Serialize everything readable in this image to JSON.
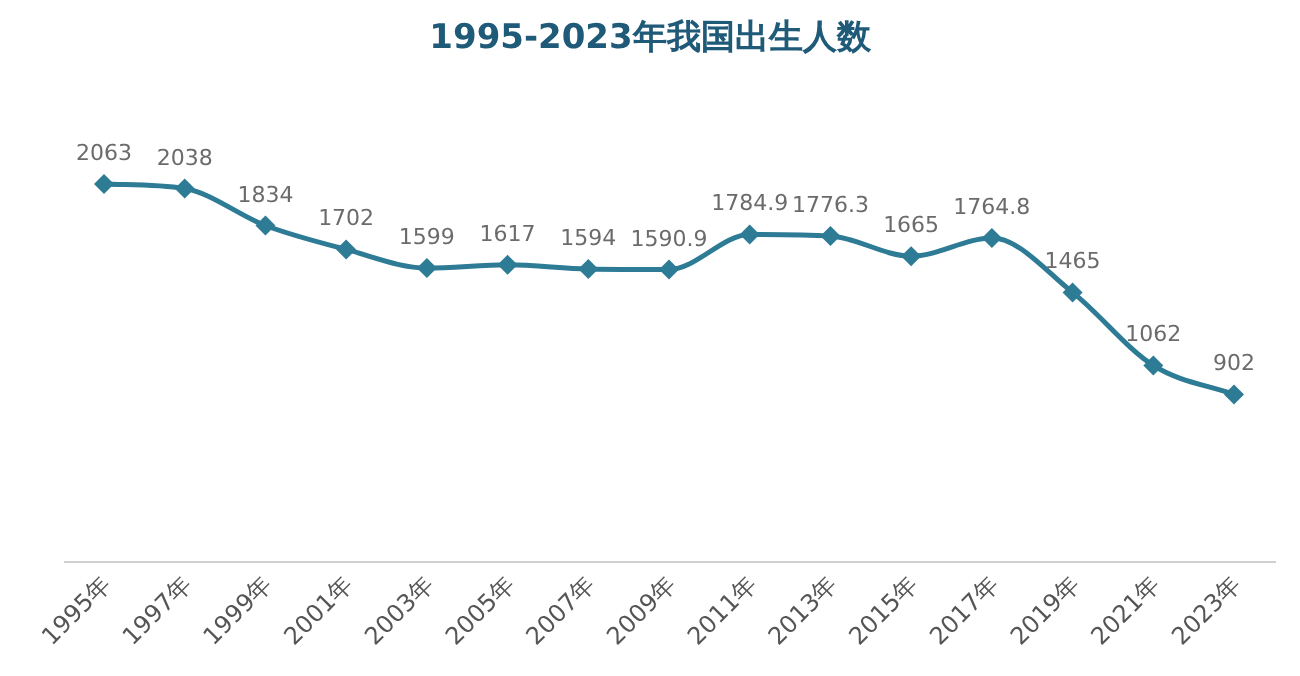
{
  "chart_data": {
    "type": "line",
    "title": "1995-2023年我国出生人数",
    "categories": [
      "1995年",
      "1997年",
      "1999年",
      "2001年",
      "2003年",
      "2005年",
      "2007年",
      "2009年",
      "2011年",
      "2013年",
      "2015年",
      "2017年",
      "2019年",
      "2021年",
      "2023年"
    ],
    "series": [
      {
        "color": "#2d7b95",
        "values": [
          2063,
          2038,
          1834,
          1702,
          1599,
          1617,
          1594,
          1590.9,
          1784.9,
          1776.3,
          1665,
          1764.8,
          1465,
          1062,
          902
        ]
      }
    ],
    "data_labels": true,
    "marker": "diamond"
  }
}
